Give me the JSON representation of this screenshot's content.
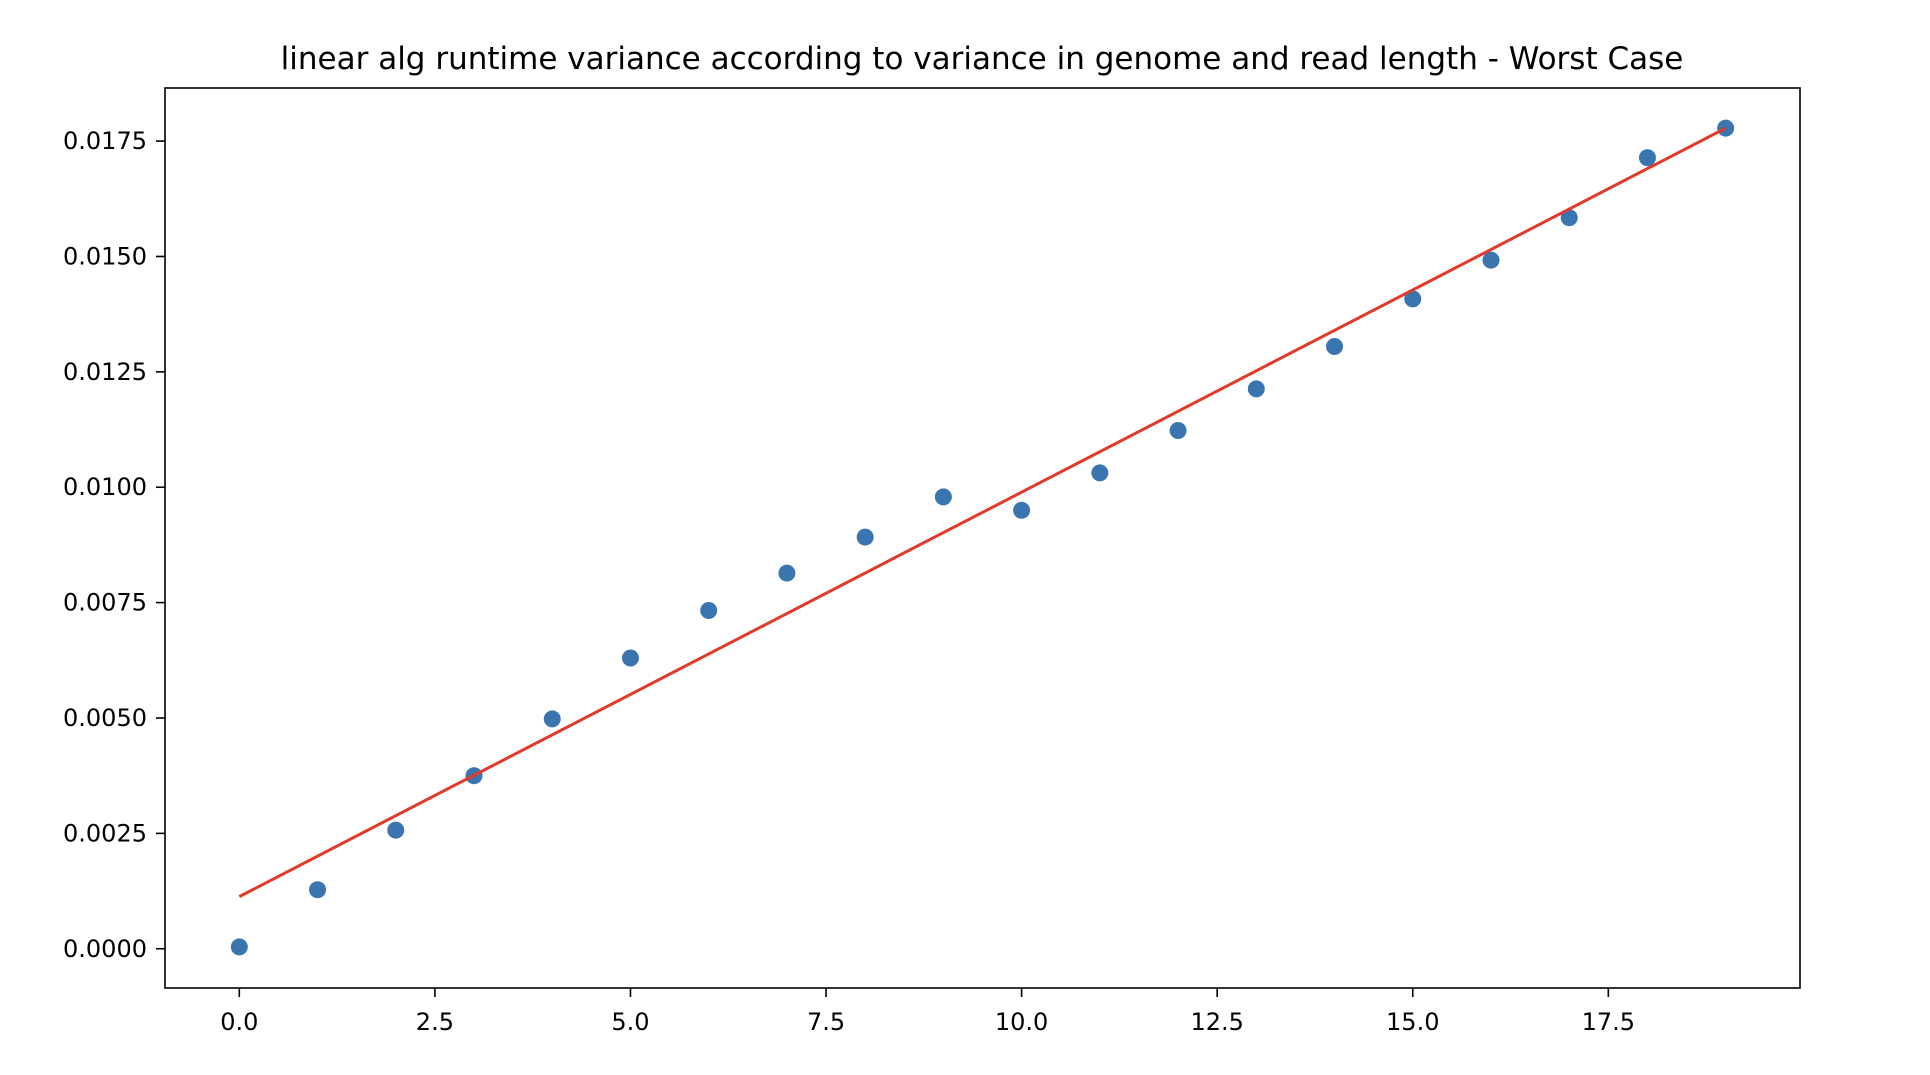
{
  "chart_data": {
    "type": "scatter",
    "title": "linear alg runtime variance according to variance in genome and read length - Worst Case",
    "xlabel": "",
    "ylabel": "",
    "xlim": [
      -0.95,
      19.95
    ],
    "ylim": [
      -0.00085,
      0.01865
    ],
    "x_ticks": [
      0.0,
      2.5,
      5.0,
      7.5,
      10.0,
      12.5,
      15.0,
      17.5
    ],
    "x_tick_labels": [
      "0.0",
      "2.5",
      "5.0",
      "7.5",
      "10.0",
      "12.5",
      "15.0",
      "17.5"
    ],
    "y_ticks": [
      0.0,
      0.0025,
      0.005,
      0.0075,
      0.01,
      0.0125,
      0.015,
      0.0175
    ],
    "y_tick_labels": [
      "0.0000",
      "0.0025",
      "0.0050",
      "0.0075",
      "0.0100",
      "0.0125",
      "0.0150",
      "0.0175"
    ],
    "grid": false,
    "series": [
      {
        "type": "scatter",
        "color": "#3a75b0",
        "x": [
          0,
          1,
          2,
          3,
          4,
          5,
          6,
          7,
          8,
          9,
          10,
          11,
          12,
          13,
          14,
          15,
          16,
          17,
          18,
          19
        ],
        "y": [
          4e-05,
          0.00128,
          0.00257,
          0.00375,
          0.00498,
          0.0063,
          0.00733,
          0.00814,
          0.00892,
          0.00979,
          0.0095,
          0.01031,
          0.01123,
          0.01213,
          0.01305,
          0.01408,
          0.01492,
          0.01584,
          0.01714,
          0.01778
        ]
      },
      {
        "type": "line",
        "color": "#e03a2a",
        "x": [
          0,
          19
        ],
        "y": [
          0.00113,
          0.01778
        ]
      }
    ]
  }
}
